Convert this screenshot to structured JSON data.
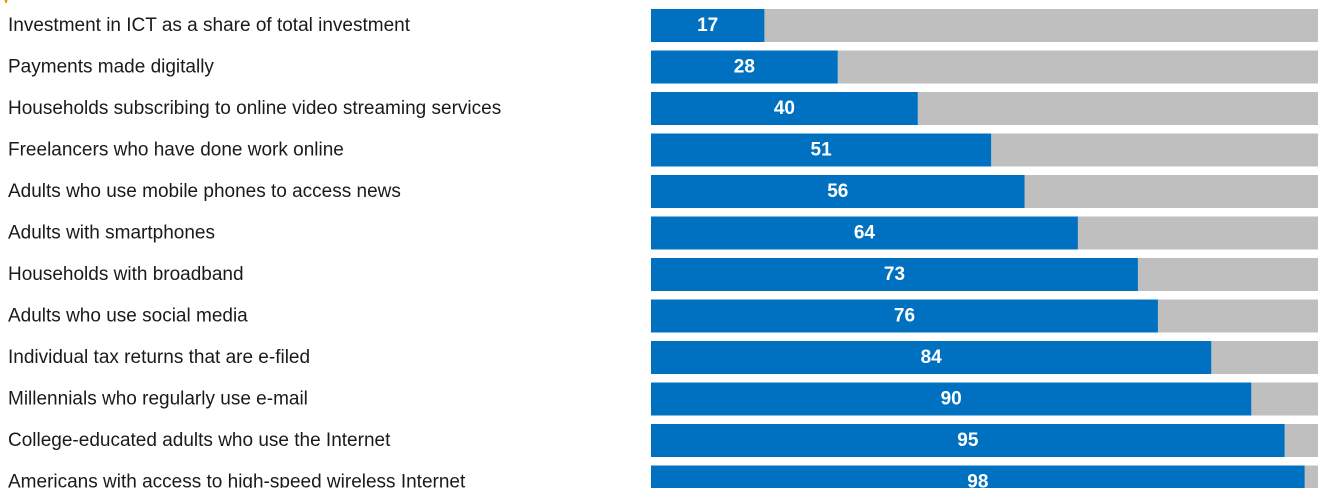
{
  "chart_data": {
    "type": "bar",
    "orientation": "horizontal",
    "categories": [
      "Investment in ICT as a share of total investment",
      "Payments made digitally",
      "Households subscribing to online video streaming services",
      "Freelancers who have done work online",
      "Adults who use mobile phones to access news",
      "Adults with smartphones",
      "Households with broadband",
      "Adults who use social media",
      "Individual tax returns that are e-filed",
      "Millennials who regularly use e-mail",
      "College-educated adults who use the Internet",
      "Americans with access to high-speed wireless Internet"
    ],
    "values": [
      17,
      28,
      40,
      51,
      56,
      64,
      73,
      76,
      84,
      90,
      95,
      98
    ],
    "xlim": [
      0,
      100
    ],
    "stacked_remainder": true,
    "grid": false,
    "legend": "none",
    "colors": {
      "bar": "#0070c0",
      "remainder": "#bfbfbf",
      "value_label": "#ffffff",
      "title_fragment": "#f39200"
    }
  }
}
